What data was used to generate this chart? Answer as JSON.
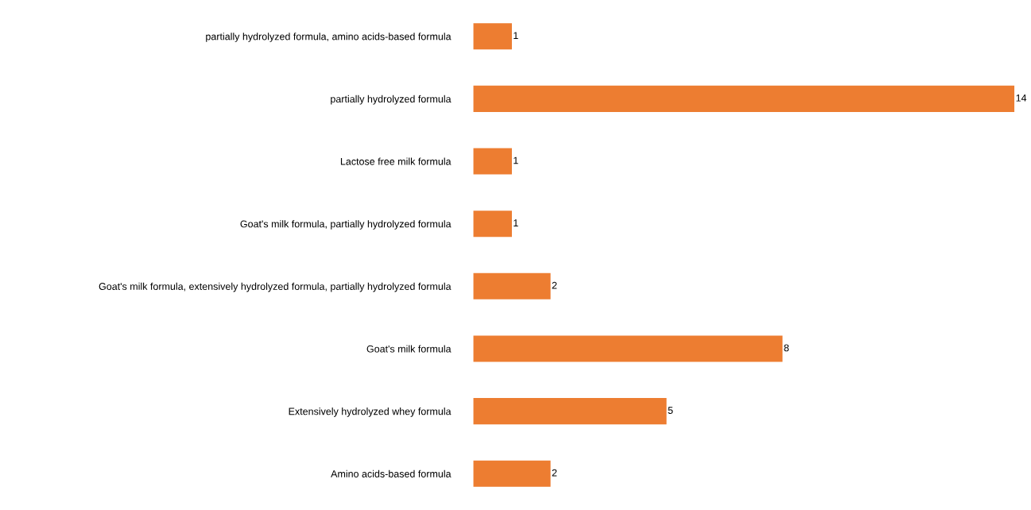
{
  "chart_data": {
    "type": "bar",
    "orientation": "horizontal",
    "categories": [
      "partially hydrolyzed formula, amino acids-based formula",
      "partially hydrolyzed formula",
      "Lactose free milk formula",
      "Goat's milk formula, partially hydrolyzed formula",
      "Goat's milk formula, extensively hydrolyzed formula, partially hydrolyzed formula",
      "Goat's milk formula",
      "Extensively hydrolyzed whey formula",
      "Amino acids-based formula"
    ],
    "values": [
      1,
      14,
      1,
      1,
      2,
      8,
      5,
      2
    ],
    "color": "#ed7d31",
    "data_labels": true,
    "tick_labels": "y",
    "grid": false,
    "legend": false
  }
}
